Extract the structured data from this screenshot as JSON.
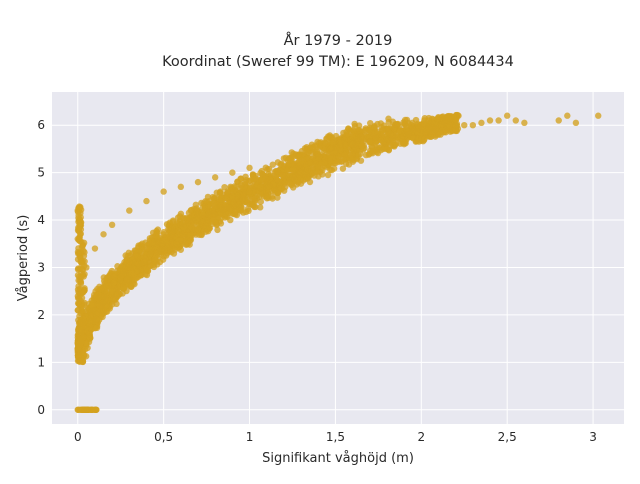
{
  "chart_data": {
    "type": "scatter",
    "title_lines": [
      "År 1979 - 2019",
      "Koordinat (Sweref 99 TM): E 196209, N 6084434"
    ],
    "xlabel": "Signifikant våghöjd (m)",
    "ylabel": "Vågperiod (s)",
    "xlim": [
      -0.15,
      3.18
    ],
    "ylim": [
      -0.3,
      6.7
    ],
    "xticks": [
      0,
      0.5,
      1,
      1.5,
      2,
      2.5,
      3
    ],
    "xtick_labels": [
      "0",
      "0,5",
      "1",
      "1,5",
      "2",
      "2,5",
      "3"
    ],
    "yticks": [
      0,
      1,
      2,
      3,
      4,
      5,
      6
    ],
    "ytick_labels": [
      "0",
      "1",
      "2",
      "3",
      "4",
      "5",
      "6"
    ],
    "grid": true,
    "legend": "none",
    "marker_color": "#d4a21f",
    "background_color": "#e8e8f0",
    "series": [
      {
        "values_note": "dense point cloud; representative sample",
        "x": [
          0,
          0.02,
          0.04,
          0.06,
          0.08,
          0.1,
          0.01,
          0.03,
          0.05,
          0.07,
          0.09,
          0,
          0.005,
          0.01,
          0.015,
          0,
          0.01,
          0.005,
          0.02,
          0.05,
          0.08,
          0.11,
          0.14,
          0.17,
          0.2,
          0.25,
          0.3,
          0.35,
          0.4,
          0.5,
          0.6,
          0.7,
          0.8,
          0.9,
          1.0,
          1.1,
          1.2,
          1.3,
          1.4,
          1.5,
          1.6,
          1.7,
          1.8,
          1.9,
          2.0,
          2.1,
          2.2,
          0.05,
          0.1,
          0.15,
          0.2,
          0.3,
          0.4,
          0.5,
          0.6,
          0.7,
          0.8,
          0.9,
          1.0,
          1.2,
          1.4,
          1.6,
          1.8,
          2.0,
          2.2,
          2.25,
          2.3,
          2.35,
          2.4,
          2.45,
          2.5,
          2.55,
          2.6,
          2.8,
          2.85,
          2.9,
          3.03
        ],
        "y": [
          0,
          0,
          0,
          0,
          0,
          0,
          0,
          0,
          0,
          0,
          0,
          4.2,
          4.1,
          3.9,
          3.7,
          3.6,
          4.0,
          3.8,
          1.1,
          1.4,
          1.7,
          1.9,
          2.1,
          2.3,
          2.5,
          2.8,
          3.0,
          3.2,
          3.4,
          3.7,
          3.9,
          4.1,
          4.3,
          4.5,
          4.6,
          4.8,
          4.9,
          5.0,
          5.1,
          5.2,
          5.3,
          5.4,
          5.5,
          5.6,
          5.7,
          5.8,
          5.9,
          3.0,
          3.4,
          3.7,
          3.9,
          4.2,
          4.4,
          4.6,
          4.7,
          4.8,
          4.9,
          5.0,
          5.1,
          5.3,
          5.4,
          5.6,
          5.7,
          5.9,
          6.0,
          6.0,
          6.0,
          6.05,
          6.1,
          6.1,
          6.2,
          6.1,
          6.05,
          6.1,
          6.2,
          6.05,
          6.2
        ]
      }
    ]
  }
}
